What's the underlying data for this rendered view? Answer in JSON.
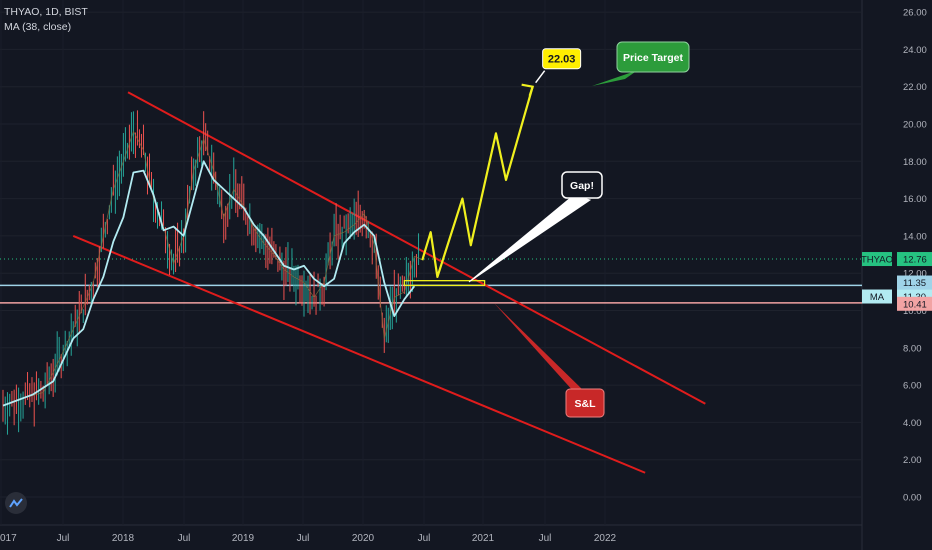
{
  "header": {
    "symbol_line": "THYAO, 1D, BIST",
    "indicator_line": "MA (38, close)"
  },
  "colors": {
    "background": "#131722",
    "price_line": "#d1d4dc",
    "ma_line": "#b2ebf2",
    "channel": "#e01c1c",
    "projection": "#f0f01e",
    "last_price": "#26c281",
    "support": "#9fd3e8",
    "resistance": "#f2a3a3",
    "target_badge": "#ffee00",
    "price_target_bubble": "#2c9c3b",
    "sl_bubble": "#c82828"
  },
  "chart_data": {
    "type": "line",
    "title": "",
    "ylim": [
      -1.5,
      27
    ],
    "y_ticks": [
      "0.00",
      "2.00",
      "4.00",
      "6.00",
      "8.00",
      "10.00",
      "12.00",
      "14.00",
      "16.00",
      "18.00",
      "20.00",
      "22.00",
      "24.00",
      "26.00"
    ],
    "x_ticks": [
      "017",
      "Jul",
      "2018",
      "Jul",
      "2019",
      "Jul",
      "2020",
      "Jul",
      "2021",
      "Jul",
      "2022"
    ],
    "price_series": {
      "name": "THYAO",
      "points": [
        [
          "2017-01",
          4.9
        ],
        [
          "2017-03",
          5.3
        ],
        [
          "2017-05",
          5.6
        ],
        [
          "2017-06",
          6.7
        ],
        [
          "2017-07",
          7.8
        ],
        [
          "2017-08",
          9.0
        ],
        [
          "2017-09",
          10.2
        ],
        [
          "2017-10",
          11.5
        ],
        [
          "2017-11",
          14.0
        ],
        [
          "2017-12",
          16.5
        ],
        [
          "2018-01",
          18.0
        ],
        [
          "2018-02",
          19.6
        ],
        [
          "2018-03",
          18.6
        ],
        [
          "2018-04",
          16.0
        ],
        [
          "2018-05",
          14.5
        ],
        [
          "2018-06",
          12.5
        ],
        [
          "2018-07",
          14.0
        ],
        [
          "2018-08",
          17.5
        ],
        [
          "2018-09",
          19.2
        ],
        [
          "2018-10",
          17.5
        ],
        [
          "2018-11",
          15.0
        ],
        [
          "2018-12",
          16.5
        ],
        [
          "2019-01",
          15.6
        ],
        [
          "2019-02",
          14.4
        ],
        [
          "2019-03",
          13.6
        ],
        [
          "2019-04",
          13.0
        ],
        [
          "2019-05",
          12.2
        ],
        [
          "2019-06",
          11.8
        ],
        [
          "2019-07",
          11.5
        ],
        [
          "2019-08",
          10.7
        ],
        [
          "2019-09",
          11.5
        ],
        [
          "2019-10",
          14.0
        ],
        [
          "2019-11",
          14.2
        ],
        [
          "2019-12",
          14.6
        ],
        [
          "2020-01",
          15.2
        ],
        [
          "2020-02",
          13.5
        ],
        [
          "2020-03",
          8.5
        ],
        [
          "2020-04",
          10.7
        ],
        [
          "2020-05",
          11.0
        ],
        [
          "2020-06",
          12.9
        ],
        [
          "2020-06-20",
          12.76
        ]
      ]
    },
    "ma_series": {
      "name": "MA",
      "points": [
        [
          "2017-01",
          4.9
        ],
        [
          "2017-04",
          5.5
        ],
        [
          "2017-06",
          6.2
        ],
        [
          "2017-08",
          8.5
        ],
        [
          "2017-09",
          9.0
        ],
        [
          "2017-10",
          10.6
        ],
        [
          "2017-11",
          11.8
        ],
        [
          "2017-12",
          13.7
        ],
        [
          "2018-01",
          15.0
        ],
        [
          "2018-02",
          17.4
        ],
        [
          "2018-03",
          17.5
        ],
        [
          "2018-04",
          16.2
        ],
        [
          "2018-05",
          14.3
        ],
        [
          "2018-06",
          14.5
        ],
        [
          "2018-07",
          14.0
        ],
        [
          "2018-08",
          16.0
        ],
        [
          "2018-09",
          18.0
        ],
        [
          "2018-10",
          17.0
        ],
        [
          "2018-11",
          16.5
        ],
        [
          "2018-12",
          16.0
        ],
        [
          "2019-01",
          15.5
        ],
        [
          "2019-02",
          14.6
        ],
        [
          "2019-03",
          14.0
        ],
        [
          "2019-04",
          13.2
        ],
        [
          "2019-05",
          12.4
        ],
        [
          "2019-06",
          12.2
        ],
        [
          "2019-07",
          12.4
        ],
        [
          "2019-08",
          11.7
        ],
        [
          "2019-09",
          11.3
        ],
        [
          "2019-10",
          11.7
        ],
        [
          "2019-11",
          13.6
        ],
        [
          "2019-12",
          14.2
        ],
        [
          "2020-01",
          14.6
        ],
        [
          "2020-02",
          14.0
        ],
        [
          "2020-03",
          11.5
        ],
        [
          "2020-04",
          9.7
        ],
        [
          "2020-05",
          10.6
        ],
        [
          "2020-06",
          11.3
        ]
      ]
    },
    "price_scale_labels": {
      "last": {
        "name": "THYAO",
        "value": "12.76"
      },
      "support_upper": {
        "value": "11.35"
      },
      "ma": {
        "name": "MA",
        "value": "11.30"
      },
      "support_lower": {
        "value": "10.41"
      }
    },
    "channel_upper": {
      "start": [
        "2018-01-15",
        21.7
      ],
      "end": [
        "2022-11",
        5.0
      ]
    },
    "channel_lower": {
      "start": [
        "2017-08",
        14.0
      ],
      "end": [
        "2022-05",
        1.3
      ]
    },
    "horizontal_lines": [
      11.35,
      10.41
    ],
    "gap_box": {
      "from": [
        "2020-05",
        11.6
      ],
      "to": [
        "2021-01",
        11.4
      ]
    },
    "projection_path": [
      [
        "2020-06-25",
        12.7
      ],
      [
        "2020-07-20",
        14.2
      ],
      [
        "2020-08-10",
        11.8
      ],
      [
        "2020-10-25",
        16.0
      ],
      [
        "2020-11-20",
        13.5
      ],
      [
        "2021-02-05",
        19.5
      ],
      [
        "2021-03-05",
        17.0
      ],
      [
        "2021-05-25",
        22.0
      ]
    ],
    "annotations": {
      "target_value": "22.03",
      "price_target": "Price Target",
      "gap": "Gap!",
      "sl": "S&L"
    }
  }
}
